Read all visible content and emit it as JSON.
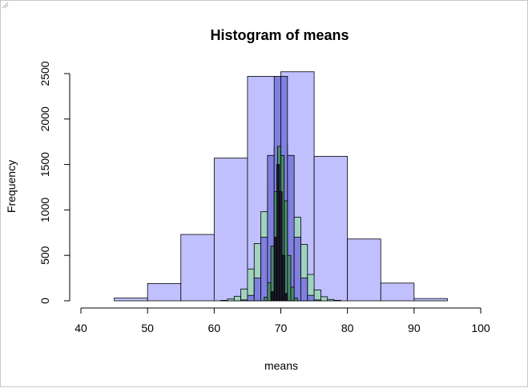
{
  "chart_data": {
    "type": "bar",
    "title": "Histogram of means",
    "xlabel": "means",
    "ylabel": "Frequency",
    "xlim": [
      40,
      100
    ],
    "ylim": [
      0,
      2500
    ],
    "x_ticks": [
      "40",
      "50",
      "60",
      "70",
      "80",
      "90",
      "100"
    ],
    "y_ticks": [
      "0",
      "500",
      "1000",
      "1500",
      "2000",
      "2500"
    ],
    "grid": false,
    "legend": "none",
    "series": [
      {
        "color": "#c0c0ff",
        "bins": [
          {
            "x0": 45,
            "x1": 50,
            "count": 30
          },
          {
            "x0": 50,
            "x1": 55,
            "count": 190
          },
          {
            "x0": 55,
            "x1": 60,
            "count": 730
          },
          {
            "x0": 60,
            "x1": 65,
            "count": 1570
          },
          {
            "x0": 65,
            "x1": 70,
            "count": 2470
          },
          {
            "x0": 70,
            "x1": 75,
            "count": 2520
          },
          {
            "x0": 75,
            "x1": 80,
            "count": 1590
          },
          {
            "x0": 80,
            "x1": 85,
            "count": 680
          },
          {
            "x0": 85,
            "x1": 90,
            "count": 195
          },
          {
            "x0": 90,
            "x1": 95,
            "count": 25
          }
        ]
      },
      {
        "color": "#a0d2c0",
        "bins": [
          {
            "x0": 61,
            "x1": 62,
            "count": 5
          },
          {
            "x0": 62,
            "x1": 63,
            "count": 20
          },
          {
            "x0": 63,
            "x1": 64,
            "count": 50
          },
          {
            "x0": 64,
            "x1": 65,
            "count": 130
          },
          {
            "x0": 65,
            "x1": 66,
            "count": 350
          },
          {
            "x0": 66,
            "x1": 67,
            "count": 630
          },
          {
            "x0": 67,
            "x1": 68,
            "count": 980
          },
          {
            "x0": 68,
            "x1": 69,
            "count": 1240
          },
          {
            "x0": 69,
            "x1": 70,
            "count": 1700
          },
          {
            "x0": 70,
            "x1": 71,
            "count": 1730
          },
          {
            "x0": 71,
            "x1": 72,
            "count": 1320
          },
          {
            "x0": 72,
            "x1": 73,
            "count": 920
          },
          {
            "x0": 73,
            "x1": 74,
            "count": 620
          },
          {
            "x0": 74,
            "x1": 75,
            "count": 290
          },
          {
            "x0": 75,
            "x1": 76,
            "count": 120
          },
          {
            "x0": 76,
            "x1": 77,
            "count": 45
          },
          {
            "x0": 77,
            "x1": 78,
            "count": 15
          },
          {
            "x0": 78,
            "x1": 79,
            "count": 5
          }
        ]
      },
      {
        "color": "#8080e0",
        "bins": [
          {
            "x0": 64,
            "x1": 65,
            "count": 10
          },
          {
            "x0": 65,
            "x1": 66,
            "count": 60
          },
          {
            "x0": 66,
            "x1": 67,
            "count": 250
          },
          {
            "x0": 67,
            "x1": 68,
            "count": 700
          },
          {
            "x0": 68,
            "x1": 69,
            "count": 1600
          },
          {
            "x0": 69,
            "x1": 70,
            "count": 2470
          },
          {
            "x0": 70,
            "x1": 71,
            "count": 2470
          },
          {
            "x0": 71,
            "x1": 72,
            "count": 1600
          },
          {
            "x0": 72,
            "x1": 73,
            "count": 700
          },
          {
            "x0": 73,
            "x1": 74,
            "count": 250
          },
          {
            "x0": 74,
            "x1": 75,
            "count": 60
          },
          {
            "x0": 75,
            "x1": 76,
            "count": 10
          }
        ]
      },
      {
        "color": "#4a8a6e",
        "bins": [
          {
            "x0": 67.5,
            "x1": 68,
            "count": 40
          },
          {
            "x0": 68,
            "x1": 68.5,
            "count": 200
          },
          {
            "x0": 68.5,
            "x1": 69,
            "count": 600
          },
          {
            "x0": 69,
            "x1": 69.5,
            "count": 1200
          },
          {
            "x0": 69.5,
            "x1": 70,
            "count": 1700
          },
          {
            "x0": 70,
            "x1": 70.5,
            "count": 1600
          },
          {
            "x0": 70.5,
            "x1": 71,
            "count": 1100
          },
          {
            "x0": 71,
            "x1": 71.5,
            "count": 500
          },
          {
            "x0": 71.5,
            "x1": 72,
            "count": 150
          },
          {
            "x0": 72,
            "x1": 72.5,
            "count": 30
          }
        ]
      },
      {
        "color": "#1a1a2a",
        "bins": [
          {
            "x0": 68.6,
            "x1": 69,
            "count": 100
          },
          {
            "x0": 69,
            "x1": 69.4,
            "count": 700
          },
          {
            "x0": 69.4,
            "x1": 69.8,
            "count": 1500
          },
          {
            "x0": 69.8,
            "x1": 70.2,
            "count": 1200
          },
          {
            "x0": 70.2,
            "x1": 70.6,
            "count": 500
          },
          {
            "x0": 70.6,
            "x1": 71,
            "count": 80
          }
        ]
      }
    ]
  }
}
